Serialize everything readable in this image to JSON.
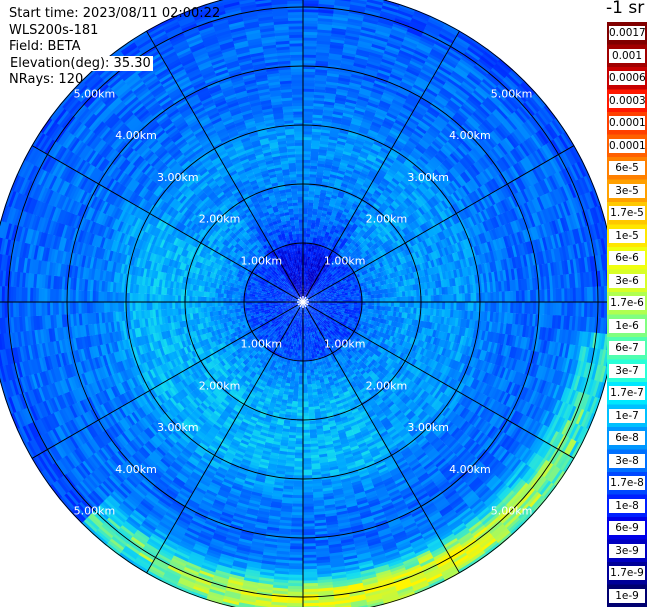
{
  "info": {
    "start_time": "Start time: 2023/08/11 02:00:22",
    "instrument": "WLS200s-181",
    "field": "Field: BETA",
    "elevation": "Elevation(deg): 35.30",
    "nrays": "NRays: 120"
  },
  "colorbar": {
    "title": "-1 sr",
    "labels": [
      "0.0017",
      "0.001",
      "0.0006",
      "0.0003",
      "0.00017",
      "0.0001",
      "6e-5",
      "3e-5",
      "1.7e-5",
      "1e-5",
      "6e-6",
      "3e-6",
      "1.7e-6",
      "1e-6",
      "6e-7",
      "3e-7",
      "1.7e-7",
      "1e-7",
      "6e-8",
      "3e-8",
      "1.7e-8",
      "1e-8",
      "6e-9",
      "3e-9",
      "1.7e-9",
      "1e-9"
    ],
    "colors": [
      "#800000",
      "#a00000",
      "#c80000",
      "#ff1800",
      "#ff4000",
      "#ff6000",
      "#ff8000",
      "#ffa000",
      "#ffc800",
      "#ffe600",
      "#f0ff10",
      "#d8ff28",
      "#b0ff50",
      "#80ff80",
      "#50ffb0",
      "#28ffd8",
      "#00e8ff",
      "#00c0ff",
      "#0098ff",
      "#0070ff",
      "#0048ff",
      "#0020ff",
      "#0000e8",
      "#0000c0",
      "#000098",
      "#000070"
    ]
  },
  "chart_data": {
    "type": "heatmap",
    "projection": "polar (PPI)",
    "field": "BETA",
    "range_rings_km": [
      1,
      2,
      3,
      4,
      5
    ],
    "ring_labels": [
      "1.00km",
      "2.00km",
      "3.00km",
      "4.00km",
      "5.00km"
    ],
    "spoke_spacing_deg": 30,
    "max_range_km": 5.3,
    "dominant_level": "6e-8",
    "background_range": [
      "1.7e-8",
      "3e-7"
    ],
    "enhanced_band": {
      "range_km": [
        4.6,
        5.3
      ],
      "azimuth_deg": [
        110,
        215
      ],
      "peak": "1e-5"
    },
    "weak_sector": {
      "range_km": [
        0,
        2.5
      ],
      "azimuth_deg": [
        330,
        30
      ],
      "level": "6e-9"
    }
  }
}
